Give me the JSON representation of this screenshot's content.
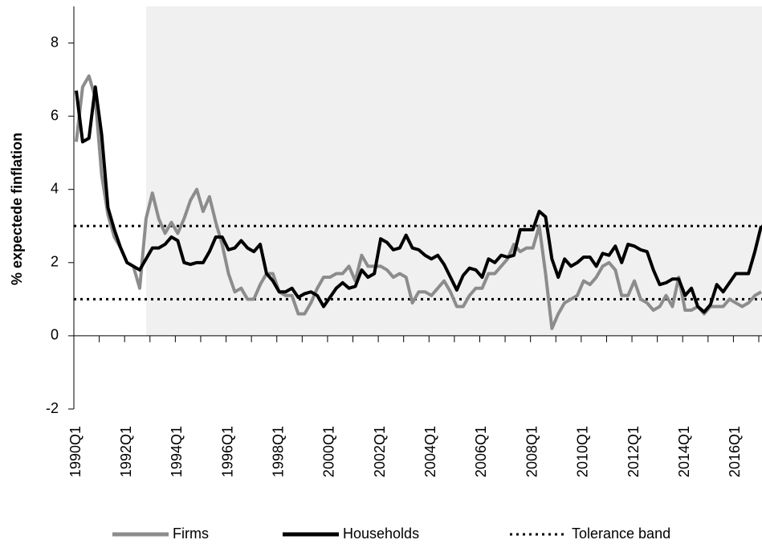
{
  "chart_data": {
    "type": "line",
    "y_label": "% expectede finflation",
    "categories": [
      "1990Q1",
      null,
      null,
      null,
      null,
      null,
      null,
      null,
      "1992Q1",
      null,
      null,
      null,
      null,
      null,
      null,
      null,
      "1994Q1",
      null,
      null,
      null,
      null,
      null,
      null,
      null,
      "1996Q1",
      null,
      null,
      null,
      null,
      null,
      null,
      null,
      "1998Q1",
      null,
      null,
      null,
      null,
      null,
      null,
      null,
      "2000Q1",
      null,
      null,
      null,
      null,
      null,
      null,
      null,
      "2002Q1",
      null,
      null,
      null,
      null,
      null,
      null,
      null,
      "2004Q1",
      null,
      null,
      null,
      null,
      null,
      null,
      null,
      "2006Q1",
      null,
      null,
      null,
      null,
      null,
      null,
      null,
      "2008Q1",
      null,
      null,
      null,
      null,
      null,
      null,
      null,
      "2010Q1",
      null,
      null,
      null,
      null,
      null,
      null,
      null,
      "2012Q1",
      null,
      null,
      null,
      null,
      null,
      null,
      null,
      "2014Q1",
      null,
      null,
      null,
      null,
      null,
      null,
      null,
      "2016Q1",
      null,
      null,
      null,
      null
    ],
    "series": [
      {
        "name": "Firms",
        "color": "#8c8c8c",
        "values": [
          5.3,
          6.8,
          7.1,
          6.5,
          4.4,
          3.3,
          2.7,
          2.4,
          2.0,
          1.9,
          1.3,
          3.2,
          3.9,
          3.2,
          2.8,
          3.1,
          2.8,
          3.2,
          3.7,
          4.0,
          3.4,
          3.8,
          3.1,
          2.5,
          1.7,
          1.2,
          1.3,
          1.0,
          1.0,
          1.4,
          1.7,
          1.7,
          1.2,
          1.1,
          1.1,
          0.6,
          0.6,
          0.9,
          1.3,
          1.6,
          1.6,
          1.7,
          1.7,
          1.9,
          1.5,
          2.2,
          1.9,
          1.9,
          1.9,
          1.8,
          1.6,
          1.7,
          1.6,
          0.9,
          1.2,
          1.2,
          1.1,
          1.3,
          1.5,
          1.2,
          0.8,
          0.8,
          1.1,
          1.3,
          1.3,
          1.7,
          1.7,
          1.9,
          2.1,
          2.5,
          2.3,
          2.4,
          2.4,
          3.0,
          1.7,
          0.2,
          0.6,
          0.9,
          1.0,
          1.1,
          1.5,
          1.4,
          1.6,
          1.9,
          2.0,
          1.8,
          1.1,
          1.1,
          1.5,
          1.0,
          0.9,
          0.7,
          0.8,
          1.1,
          0.8,
          1.6,
          0.7,
          0.7,
          0.8,
          0.6,
          0.8,
          0.8,
          0.8,
          1.0,
          0.9,
          0.8,
          0.9,
          1.1,
          1.2
        ]
      },
      {
        "name": "Households",
        "color": "#000000",
        "values": [
          6.7,
          5.3,
          5.4,
          6.8,
          5.5,
          3.5,
          2.9,
          2.4,
          2.0,
          1.9,
          1.8,
          2.1,
          2.4,
          2.4,
          2.5,
          2.7,
          2.6,
          2.0,
          1.95,
          2.0,
          2.0,
          2.3,
          2.7,
          2.7,
          2.35,
          2.4,
          2.6,
          2.4,
          2.3,
          2.5,
          1.7,
          1.5,
          1.2,
          1.2,
          1.3,
          1.05,
          1.15,
          1.2,
          1.1,
          0.8,
          1.05,
          1.3,
          1.45,
          1.3,
          1.35,
          1.8,
          1.6,
          1.7,
          2.65,
          2.55,
          2.35,
          2.4,
          2.75,
          2.4,
          2.35,
          2.2,
          2.1,
          2.2,
          1.95,
          1.6,
          1.25,
          1.65,
          1.85,
          1.8,
          1.6,
          2.1,
          2.0,
          2.2,
          2.15,
          2.2,
          2.9,
          2.9,
          2.9,
          3.4,
          3.25,
          2.1,
          1.6,
          2.1,
          1.9,
          2.0,
          2.15,
          2.15,
          1.9,
          2.25,
          2.2,
          2.45,
          2.0,
          2.5,
          2.45,
          2.35,
          2.3,
          1.8,
          1.4,
          1.45,
          1.55,
          1.55,
          1.1,
          1.3,
          0.8,
          0.65,
          0.85,
          1.4,
          1.2,
          1.45,
          1.7,
          1.7,
          1.7,
          2.3,
          3.0
        ]
      }
    ],
    "reference_lines": {
      "name": "Tolerance band",
      "color": "#000000",
      "values": [
        1,
        3
      ]
    },
    "shade_start_index": 11,
    "shade_color": "#f0f0f0",
    "ylim": [
      -2,
      9
    ],
    "yticks": [
      -2,
      0,
      2,
      4,
      6,
      8
    ]
  }
}
